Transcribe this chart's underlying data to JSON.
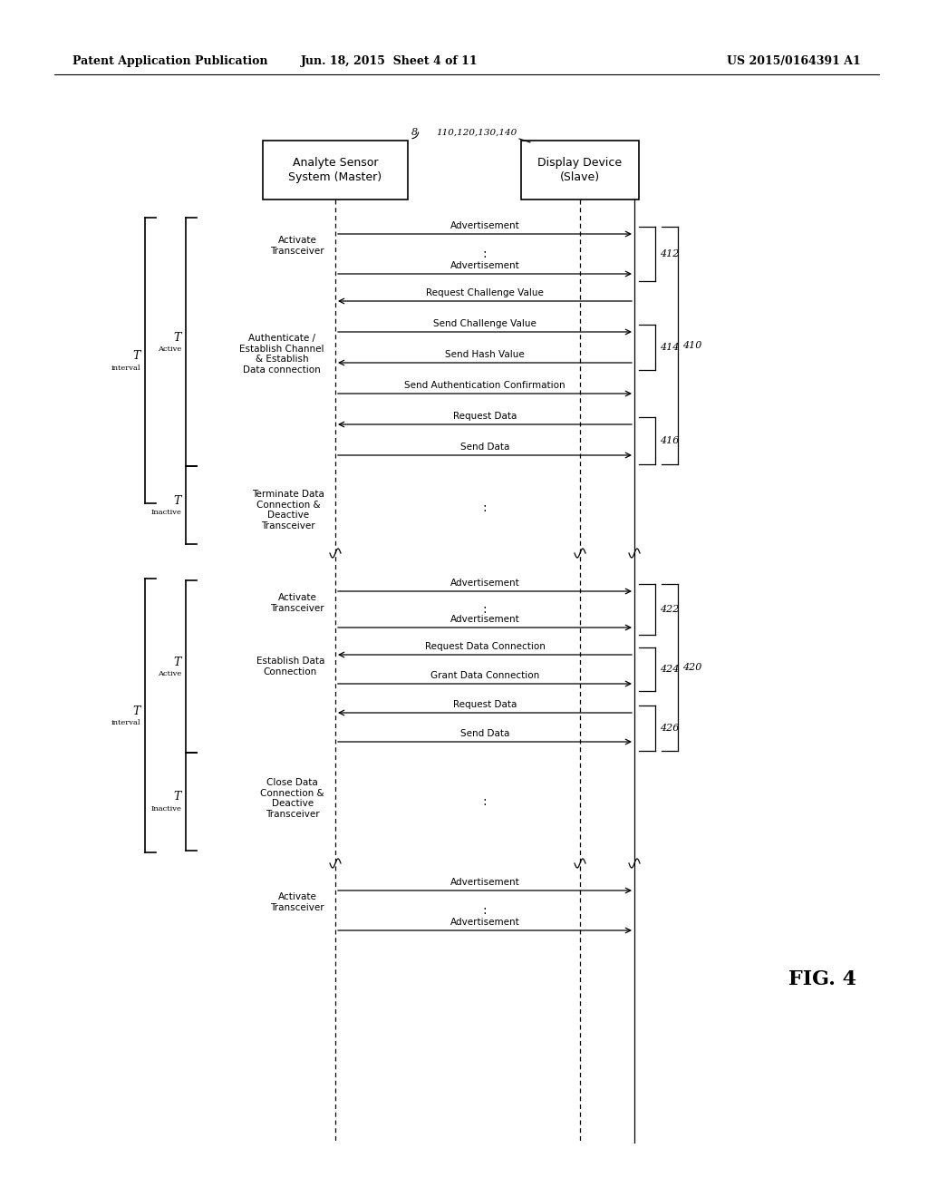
{
  "title_left": "Patent Application Publication",
  "title_mid": "Jun. 18, 2015  Sheet 4 of 11",
  "title_right": "US 2015/0164391 A1",
  "fig_label": "FIG. 4",
  "master_label": "Analyte Sensor\nSystem (Master)",
  "slave_label": "Display Device\n(Slave)",
  "master_ref": "8",
  "slave_ref": "110,120,130,140",
  "background": "#ffffff"
}
